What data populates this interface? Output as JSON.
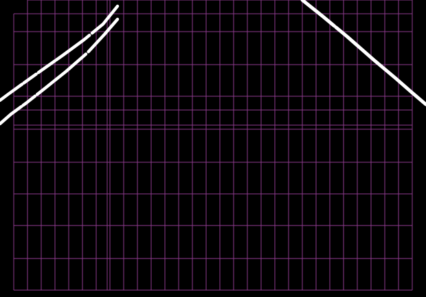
{
  "colors": {
    "background": "#000000",
    "grid": "#8e3a8e",
    "stroke": "#ffffff"
  },
  "strokes": [
    {
      "name": "left-upper-stroke"
    },
    {
      "name": "left-lower-stroke"
    },
    {
      "name": "right-stroke"
    }
  ]
}
